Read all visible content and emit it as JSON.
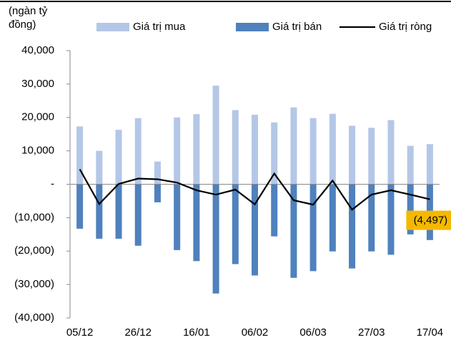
{
  "chart_data": {
    "type": "bar-line",
    "ylabel": "(ngàn tỷ đồng)",
    "categories": [
      "05/12",
      null,
      null,
      "26/12",
      null,
      null,
      "16/01",
      null,
      null,
      "06/02",
      null,
      null,
      "06/03",
      null,
      null,
      "27/03",
      null,
      null,
      "17/04"
    ],
    "series": [
      {
        "name": "Giá trị mua",
        "type": "bar",
        "color": "#b4c7e7",
        "values": [
          17300,
          10000,
          16300,
          19800,
          6800,
          20000,
          21000,
          29500,
          22200,
          20800,
          18500,
          23000,
          19800,
          21100,
          17500,
          16900,
          19200,
          11500,
          12000
        ]
      },
      {
        "name": "Giá trị bán",
        "type": "bar",
        "color": "#4f81bd",
        "values": [
          -13300,
          -16300,
          -16300,
          -18400,
          -5400,
          -19700,
          -23000,
          -32700,
          -23900,
          -27300,
          -15600,
          -28000,
          -26000,
          -20100,
          -25200,
          -20100,
          -21100,
          -15000,
          -16700
        ]
      },
      {
        "name": "Giá trị ròng",
        "type": "line",
        "color": "#000000",
        "values": [
          4500,
          -5900,
          100,
          1700,
          1500,
          500,
          -1800,
          -3100,
          -1600,
          -6000,
          3200,
          -4800,
          -6100,
          1100,
          -7600,
          -3100,
          -1800,
          -3100,
          -4497
        ],
        "value_labels": [
          null,
          null,
          null,
          null,
          null,
          null,
          null,
          null,
          null,
          null,
          null,
          null,
          null,
          null,
          null,
          null,
          null,
          null,
          "(4,497)"
        ]
      }
    ],
    "ylim": [
      -40000,
      40000
    ],
    "yticks": [
      {
        "value": -40000,
        "label": "(40,000)"
      },
      {
        "value": -30000,
        "label": "(30,000)"
      },
      {
        "value": -20000,
        "label": "(20,000)"
      },
      {
        "value": -10000,
        "label": "(10,000)"
      },
      {
        "value": 0,
        "label": "-"
      },
      {
        "value": 10000,
        "label": "10,000"
      },
      {
        "value": 20000,
        "label": "20,000"
      },
      {
        "value": 30000,
        "label": "30,000"
      },
      {
        "value": 40000,
        "label": "40,000"
      }
    ],
    "label_color": "#f5b800"
  }
}
